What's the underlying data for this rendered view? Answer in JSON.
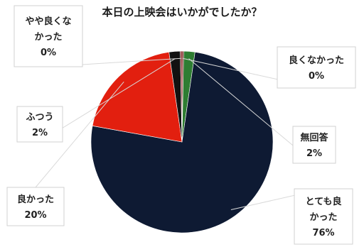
{
  "chart_data": {
    "type": "pie",
    "title": "本日の上映会はいかがでしたか？",
    "slices": [
      {
        "label": "良くなかった",
        "label_lines": [
          "良くなかった"
        ],
        "pct_text": "0%",
        "value": 0.3,
        "color": "#7a1f1f"
      },
      {
        "label": "無回答",
        "label_lines": [
          "無回答"
        ],
        "pct_text": "2%",
        "value": 2,
        "color": "#2e7d32"
      },
      {
        "label": "とても良かった",
        "label_lines": [
          "とても良",
          "かった"
        ],
        "pct_text": "76%",
        "value": 76,
        "color": "#0e1a33"
      },
      {
        "label": "良かった",
        "label_lines": [
          "良かった"
        ],
        "pct_text": "20%",
        "value": 20,
        "color": "#e21f0f"
      },
      {
        "label": "ふつう",
        "label_lines": [
          "ふつう"
        ],
        "pct_text": "2%",
        "value": 2,
        "color": "#111111"
      },
      {
        "label": "やや良くなかった",
        "label_lines": [
          "やや良くな",
          "かった"
        ],
        "pct_text": "0%",
        "value": 0.3,
        "color": "#8b2a2a"
      }
    ]
  }
}
